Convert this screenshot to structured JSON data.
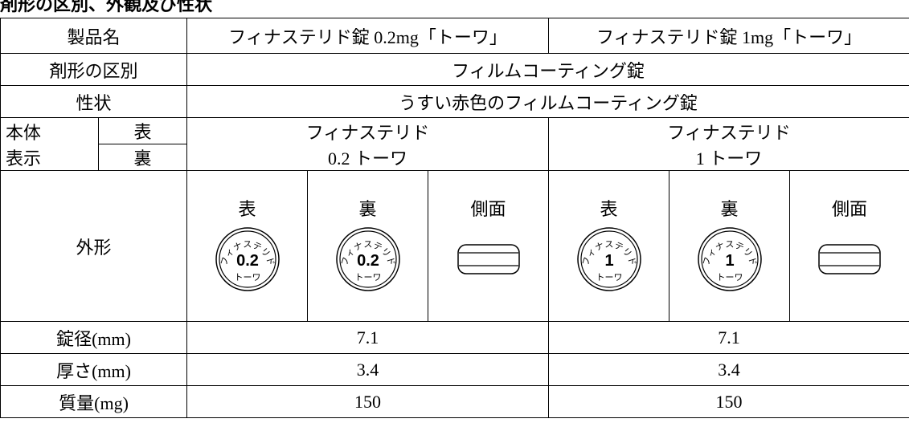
{
  "title": "剤形の区別、外観及び性状",
  "table": {
    "product": {
      "label": "製品名",
      "values": [
        "フィナステリド錠 0.2mg「トーワ」",
        "フィナステリド錠 1mg「トーワ」"
      ]
    },
    "form": {
      "label": "剤形の区別",
      "value": "フィルムコーティング錠"
    },
    "description": {
      "label": "性状",
      "value": "うすい赤色のフィルムコーティング錠"
    },
    "marking": {
      "label": [
        "本体",
        "表示"
      ],
      "sides": [
        "表",
        "裏"
      ],
      "values": [
        [
          "フィナステリド",
          "0.2 トーワ"
        ],
        [
          "フィナステリド",
          "1 トーワ"
        ]
      ]
    },
    "shape": {
      "label": "外形",
      "views": [
        "表",
        "裏",
        "側面",
        "表",
        "裏",
        "側面"
      ],
      "imprints": [
        {
          "top": "フィナステリド",
          "center": "0.2",
          "bottom": "トーワ"
        },
        {
          "top": "フィナステリド",
          "center": "1",
          "bottom": "トーワ"
        }
      ]
    },
    "diameter": {
      "label": "錠径(mm)",
      "values": [
        7.1,
        7.1
      ]
    },
    "thickness": {
      "label": "厚さ(mm)",
      "values": [
        3.4,
        3.4
      ]
    },
    "mass": {
      "label": "質量(mg)",
      "values": [
        150,
        150
      ]
    }
  }
}
